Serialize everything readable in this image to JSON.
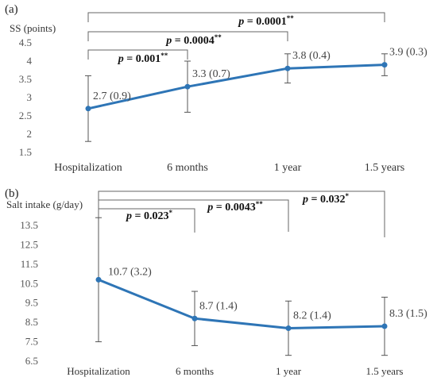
{
  "chart_data": [
    {
      "panel_label": "(a)",
      "type": "line",
      "ylabel": "SS (points)",
      "xlabel": "",
      "categories": [
        "Hospitalization",
        "6 months",
        "1 year",
        "1.5 years"
      ],
      "ylim": [
        1.5,
        4.5
      ],
      "yticks": [
        "1.5",
        "2",
        "2.5",
        "3",
        "3.5",
        "4",
        "4.5"
      ],
      "series": [
        {
          "values": [
            2.7,
            3.3,
            3.8,
            3.9
          ],
          "error_low": [
            1.8,
            2.6,
            3.4,
            3.6
          ],
          "error_high": [
            3.6,
            4.0,
            4.2,
            4.2
          ],
          "color": "#2e75b6"
        }
      ],
      "data_labels": [
        "2.7 (0.9)",
        "3.3 (0.7)",
        "3.8 (0.4)",
        "3.9 (0.3)"
      ],
      "brackets": [
        {
          "from": 0,
          "to": 1,
          "p": "0.001",
          "stars": "**"
        },
        {
          "from": 0,
          "to": 2,
          "p": "0.0004",
          "stars": "**"
        },
        {
          "from": 0,
          "to": 3,
          "p": "0.0001",
          "stars": "**"
        }
      ],
      "grid": false
    },
    {
      "panel_label": "(b)",
      "type": "line",
      "ylabel": "Salt intake (g/day)",
      "xlabel": "",
      "categories": [
        "Hospitalization",
        "6 months",
        "1 year",
        "1.5 years"
      ],
      "ylim": [
        6.5,
        13.5
      ],
      "yticks": [
        "6.5",
        "7.5",
        "8.5",
        "9.5",
        "10.5",
        "11.5",
        "12.5",
        "13.5"
      ],
      "series": [
        {
          "values": [
            10.7,
            8.7,
            8.2,
            8.3
          ],
          "error_low": [
            7.5,
            7.3,
            6.8,
            6.8
          ],
          "error_high": [
            13.9,
            10.1,
            9.6,
            9.8
          ],
          "color": "#2e75b6"
        }
      ],
      "data_labels": [
        "10.7 (3.2)",
        "8.7 (1.4)",
        "8.2 (1.4)",
        "8.3 (1.5)"
      ],
      "brackets": [
        {
          "from": 0,
          "to": 1,
          "p": "0.023",
          "stars": "*"
        },
        {
          "from": 0,
          "to": 2,
          "p": "0.0043",
          "stars": "**"
        },
        {
          "from": 0,
          "to": 3,
          "p": "0.032",
          "stars": "*"
        }
      ],
      "grid": false
    }
  ]
}
